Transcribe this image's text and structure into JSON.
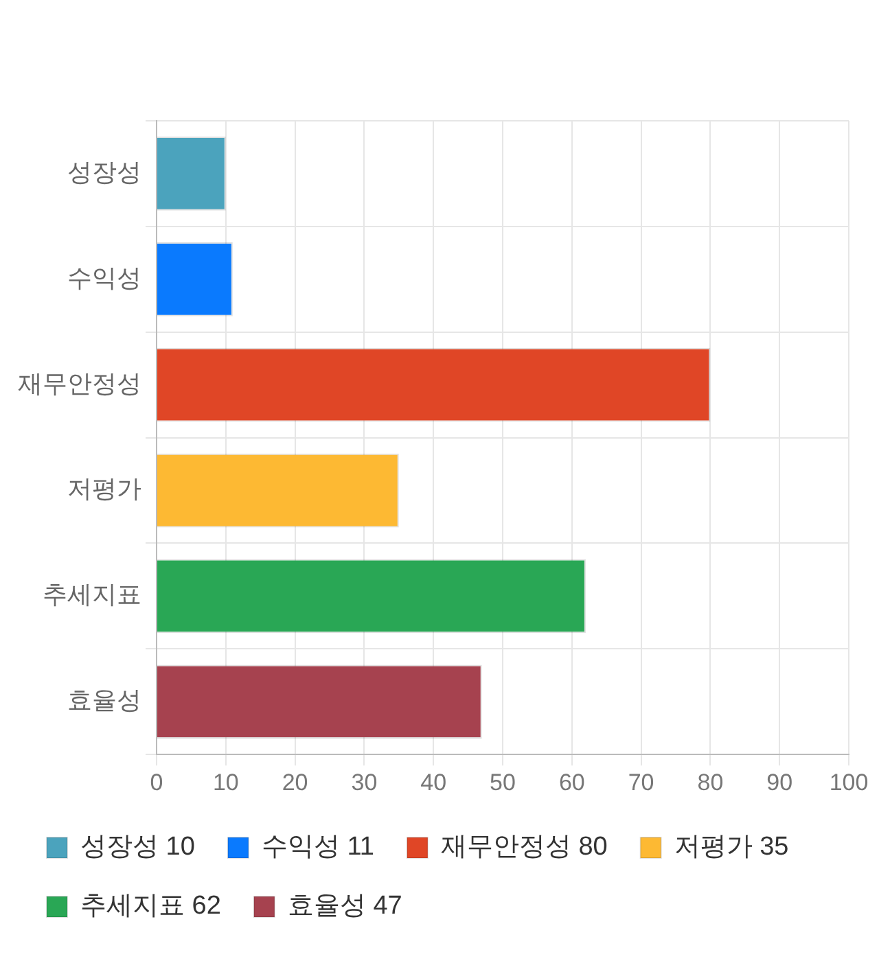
{
  "chart_data": {
    "type": "bar",
    "orientation": "horizontal",
    "stacked": true,
    "categories": [
      "성장성",
      "수익성",
      "재무안정성",
      "저평가",
      "추세지표",
      "효율성"
    ],
    "series": [
      {
        "name": "성장성 10",
        "color": "#4ba3bd",
        "values": [
          10,
          null,
          null,
          null,
          null,
          null
        ]
      },
      {
        "name": "수익성 11",
        "color": "#0a7afe",
        "values": [
          null,
          11,
          null,
          null,
          null,
          null
        ]
      },
      {
        "name": "재무안정성 80",
        "color": "#e04626",
        "values": [
          null,
          null,
          80,
          null,
          null,
          null
        ]
      },
      {
        "name": "저평가 35",
        "color": "#fdb933",
        "values": [
          null,
          null,
          null,
          35,
          null,
          null
        ]
      },
      {
        "name": "추세지표 62",
        "color": "#29a755",
        "values": [
          null,
          null,
          null,
          null,
          62,
          null
        ]
      },
      {
        "name": "효율성 47",
        "color": "#a6424f",
        "values": [
          null,
          null,
          null,
          null,
          null,
          47
        ]
      }
    ],
    "xlim": [
      0,
      100
    ],
    "xticks": [
      0,
      10,
      20,
      30,
      40,
      50,
      60,
      70,
      80,
      90,
      100
    ],
    "grid": true,
    "legend": "bottom"
  }
}
